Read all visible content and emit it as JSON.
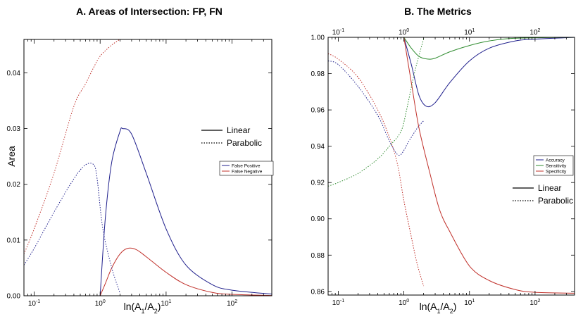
{
  "chart_data": [
    {
      "type": "line",
      "title": "A. Areas of Intersection: FP, FN",
      "xlabel": "ln(A1/A2)",
      "ylabel": "Area",
      "x_scale": "log",
      "xlim": [
        0.07,
        400
      ],
      "ylim": [
        0,
        0.046
      ],
      "x_tick_labels": [
        {
          "value": 0.1,
          "base": "10",
          "exp": "-1"
        },
        {
          "value": 1,
          "base": "10",
          "exp": "0"
        },
        {
          "value": 10,
          "base": "10",
          "exp": "1"
        },
        {
          "value": 100,
          "base": "10",
          "exp": "2"
        }
      ],
      "y_tick_labels": [
        "0.00",
        "0.01",
        "0.02",
        "0.03",
        "0.04"
      ],
      "y_tick_values": [
        0,
        0.01,
        0.02,
        0.03,
        0.04
      ],
      "grid": false,
      "style_legend": {
        "placement": "center-right",
        "entries": [
          {
            "label": "Linear",
            "dash": "solid"
          },
          {
            "label": "Parabolic",
            "dash": "dotted"
          }
        ]
      },
      "color_legend": {
        "placement": "center-right",
        "entries": [
          {
            "label": "False Positive",
            "color": "#1f1f8c"
          },
          {
            "label": "False Negative",
            "color": "#c0302a"
          }
        ]
      },
      "series": [
        {
          "name": "False Positive",
          "style": "Linear",
          "color": "#1f1f8c",
          "dash": "solid",
          "points": [
            [
              1.0,
              0.0
            ],
            [
              1.2,
              0.014
            ],
            [
              1.5,
              0.024
            ],
            [
              2.0,
              0.0295
            ],
            [
              2.2,
              0.03
            ],
            [
              3,
              0.029
            ],
            [
              5,
              0.022
            ],
            [
              10,
              0.012
            ],
            [
              20,
              0.0055
            ],
            [
              50,
              0.002
            ],
            [
              100,
              0.001
            ],
            [
              400,
              0.0003
            ]
          ]
        },
        {
          "name": "False Negative",
          "style": "Linear",
          "color": "#c0302a",
          "dash": "solid",
          "points": [
            [
              1.0,
              0.0
            ],
            [
              1.2,
              0.0022
            ],
            [
              1.5,
              0.005
            ],
            [
              2.0,
              0.0075
            ],
            [
              2.6,
              0.0085
            ],
            [
              3.5,
              0.0083
            ],
            [
              5,
              0.007
            ],
            [
              10,
              0.0042
            ],
            [
              20,
              0.002
            ],
            [
              50,
              0.0006
            ],
            [
              100,
              0.00025
            ],
            [
              400,
              5e-05
            ]
          ]
        },
        {
          "name": "False Positive",
          "style": "Parabolic",
          "color": "#1f1f8c",
          "dash": "dotted",
          "points": [
            [
              0.07,
              0.0055
            ],
            [
              0.1,
              0.0085
            ],
            [
              0.2,
              0.015
            ],
            [
              0.4,
              0.021
            ],
            [
              0.6,
              0.0235
            ],
            [
              0.8,
              0.0235
            ],
            [
              0.9,
              0.021
            ],
            [
              1.1,
              0.012
            ],
            [
              1.5,
              0.005
            ],
            [
              2.0,
              0.0005
            ]
          ]
        },
        {
          "name": "False Negative",
          "style": "Parabolic",
          "color": "#c0302a",
          "dash": "dotted",
          "points": [
            [
              0.07,
              0.0075
            ],
            [
              0.1,
              0.012
            ],
            [
              0.2,
              0.022
            ],
            [
              0.4,
              0.034
            ],
            [
              0.6,
              0.038
            ],
            [
              0.8,
              0.041
            ],
            [
              1.0,
              0.043
            ],
            [
              1.5,
              0.045
            ],
            [
              2.0,
              0.046
            ]
          ]
        }
      ]
    },
    {
      "type": "line",
      "title": "B. The Metrics",
      "xlabel": "ln(A1/A2)",
      "x_scale": "log",
      "xlim": [
        0.07,
        400
      ],
      "ylim": [
        0.858,
        1.0
      ],
      "x_tick_labels": [
        {
          "value": 0.1,
          "base": "10",
          "exp": "-1"
        },
        {
          "value": 1,
          "base": "10",
          "exp": "0"
        },
        {
          "value": 10,
          "base": "10",
          "exp": "1"
        },
        {
          "value": 100,
          "base": "10",
          "exp": "2"
        }
      ],
      "y_tick_labels": [
        "0.86",
        "0.88",
        "0.90",
        "0.92",
        "0.94",
        "0.96",
        "0.98",
        "1.00"
      ],
      "y_tick_values": [
        0.86,
        0.88,
        0.9,
        0.92,
        0.94,
        0.96,
        0.98,
        1.0
      ],
      "grid": false,
      "color_legend": {
        "placement": "center-right",
        "entries": [
          {
            "label": "Accuracy",
            "color": "#1f1f8c"
          },
          {
            "label": "Sensitivity",
            "color": "#2e8b2e"
          },
          {
            "label": "Specificity",
            "color": "#c0302a"
          }
        ]
      },
      "style_legend": {
        "placement": "center-right",
        "entries": [
          {
            "label": "Linear",
            "dash": "solid"
          },
          {
            "label": "Parabolic",
            "dash": "dotted"
          }
        ]
      },
      "series": [
        {
          "name": "Accuracy",
          "style": "Linear",
          "color": "#1f1f8c",
          "dash": "solid",
          "points": [
            [
              1.0,
              1.0
            ],
            [
              1.3,
              0.985
            ],
            [
              1.7,
              0.968
            ],
            [
              2.2,
              0.962
            ],
            [
              3,
              0.964
            ],
            [
              5,
              0.975
            ],
            [
              10,
              0.987
            ],
            [
              20,
              0.994
            ],
            [
              50,
              0.998
            ],
            [
              100,
              0.999
            ],
            [
              400,
              1.0
            ]
          ]
        },
        {
          "name": "Sensitivity",
          "style": "Linear",
          "color": "#2e8b2e",
          "dash": "solid",
          "points": [
            [
              1.0,
              1.0
            ],
            [
              1.3,
              0.994
            ],
            [
              1.7,
              0.9895
            ],
            [
              2.3,
              0.988
            ],
            [
              3,
              0.9885
            ],
            [
              5,
              0.992
            ],
            [
              10,
              0.9955
            ],
            [
              20,
              0.998
            ],
            [
              50,
              0.9995
            ],
            [
              400,
              1.0
            ]
          ]
        },
        {
          "name": "Specificity",
          "style": "Linear",
          "color": "#c0302a",
          "dash": "solid",
          "points": [
            [
              1.0,
              1.0
            ],
            [
              1.3,
              0.975
            ],
            [
              1.7,
              0.95
            ],
            [
              2.5,
              0.925
            ],
            [
              3.5,
              0.905
            ],
            [
              5,
              0.893
            ],
            [
              10,
              0.874
            ],
            [
              20,
              0.866
            ],
            [
              50,
              0.861
            ],
            [
              100,
              0.8595
            ],
            [
              400,
              0.859
            ]
          ]
        },
        {
          "name": "Accuracy",
          "style": "Parabolic",
          "color": "#1f1f8c",
          "dash": "dotted",
          "points": [
            [
              0.07,
              0.987
            ],
            [
              0.1,
              0.985
            ],
            [
              0.2,
              0.973
            ],
            [
              0.4,
              0.957
            ],
            [
              0.6,
              0.943
            ],
            [
              0.85,
              0.935
            ],
            [
              1.2,
              0.943
            ],
            [
              1.6,
              0.95
            ],
            [
              2.0,
              0.954
            ]
          ]
        },
        {
          "name": "Sensitivity",
          "style": "Parabolic",
          "color": "#2e8b2e",
          "dash": "dotted",
          "points": [
            [
              0.07,
              0.918
            ],
            [
              0.1,
              0.92
            ],
            [
              0.2,
              0.925
            ],
            [
              0.4,
              0.933
            ],
            [
              0.6,
              0.94
            ],
            [
              0.9,
              0.948
            ],
            [
              1.1,
              0.96
            ],
            [
              1.4,
              0.978
            ],
            [
              1.7,
              0.99
            ],
            [
              2.0,
              0.999
            ]
          ]
        },
        {
          "name": "Specificity",
          "style": "Parabolic",
          "color": "#c0302a",
          "dash": "dotted",
          "points": [
            [
              0.07,
              0.991
            ],
            [
              0.1,
              0.988
            ],
            [
              0.2,
              0.978
            ],
            [
              0.4,
              0.96
            ],
            [
              0.6,
              0.945
            ],
            [
              0.8,
              0.93
            ],
            [
              1.0,
              0.91
            ],
            [
              1.3,
              0.89
            ],
            [
              1.6,
              0.875
            ],
            [
              2.0,
              0.863
            ]
          ]
        }
      ]
    }
  ]
}
